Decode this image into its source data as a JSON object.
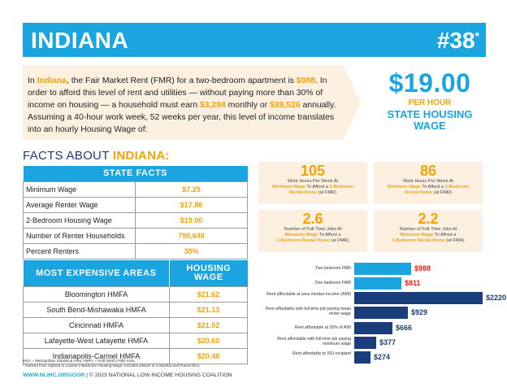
{
  "header": {
    "state": "INDIANA",
    "rank": "#38",
    "rank_mark": "*"
  },
  "intro": {
    "p1": "In ",
    "state": "Indiana",
    "p2": ", the Fair Market Rent (FMR) for a two-bedroom apartment is ",
    "fmr": "$988",
    "p3": ". In order to afford this level of rent and utilities — without paying more than 30% of income on housing — a household must earn ",
    "monthly": "$3,294",
    "p4": " monthly or ",
    "annual": "$39,526",
    "p5": " annually. Assuming a 40-hour work week, 52 weeks per year, this level of income translates into an hourly Housing Wage of:"
  },
  "wage": {
    "amount": "$19.00",
    "per": "PER HOUR",
    "label_line1": "STATE HOUSING",
    "label_line2": "WAGE"
  },
  "facts_title": {
    "prefix": "FACTS ABOUT ",
    "state": "INDIANA:"
  },
  "state_facts": {
    "heading": "STATE FACTS",
    "rows": [
      {
        "label": "Minimum Wage",
        "value": "$7.25"
      },
      {
        "label": "Average Renter Wage",
        "value": "$17.86"
      },
      {
        "label": "2-Bedroom Housing Wage",
        "value": "$19.00"
      },
      {
        "label": "Number of Renter Households",
        "value": "790,648"
      },
      {
        "label": "Percent Renters",
        "value": "30%"
      }
    ]
  },
  "areas": {
    "heading": "MOST EXPENSIVE AREAS",
    "col2_line1": "HOUSING",
    "col2_line2": "WAGE",
    "rows": [
      {
        "name": "Bloomington HMFA",
        "wage": "$21.62"
      },
      {
        "name": "South Bend-Mishawaka HMFA",
        "wage": "$21.13"
      },
      {
        "name": "Cincinnati HMFA",
        "wage": "$21.02"
      },
      {
        "name": "Lafayette-West Lafayette HMFA",
        "wage": "$20.60"
      },
      {
        "name": "Indianapolis-Carmel HMFA",
        "wage": "$20.48"
      }
    ]
  },
  "stats": [
    {
      "num": "105",
      "l1": "Work Hours Per Week At",
      "l2a": "Minimum Wage",
      "l2b": " To Afford a ",
      "l2c": "2-Bedroom",
      "l3a": "Rental Home",
      "l3b": " (at FMR)"
    },
    {
      "num": "86",
      "l1": "Work Hours Per Week At",
      "l2a": "Minimum Wage",
      "l2b": " To Afford a ",
      "l2c": "1-Bedroom",
      "l3a": "Rental Home",
      "l3b": " (at FMR)"
    },
    {
      "num": "2.6",
      "l1": "Number of Full-Time Jobs At",
      "l2a": "Minimum Wage",
      "l2b": " To Afford a",
      "l2c": "",
      "l3a": "2-Bedroom Rental Home",
      "l3b": " (at FMR)"
    },
    {
      "num": "2.2",
      "l1": "Number of Full-Time Jobs At",
      "l2a": "Minimum Wage",
      "l2b": " To Afford a",
      "l2c": "",
      "l3a": "1-Bedroom Rental Home",
      "l3b": " (at FMR)"
    }
  ],
  "chart_data": {
    "type": "bar",
    "orientation": "horizontal",
    "categories": [
      "Two bedroom FMR",
      "One bedroom FMR",
      "Rent affordable at area median income (AMI)",
      "Rent affordable with full-time job paying mean renter wage",
      "Rent affordable at 30% of AMI",
      "Rent affordable with full-time job paying minimum wage",
      "Rent affordable to SSI recipient"
    ],
    "values": [
      988,
      811,
      2220,
      929,
      666,
      377,
      274
    ],
    "value_labels": [
      "$988",
      "$811",
      "$2220",
      "$929",
      "$666",
      "$377",
      "$274"
    ],
    "colors": [
      "#1ba5e0",
      "#1ba5e0",
      "#1a3d7c",
      "#1a3d7c",
      "#1a3d7c",
      "#1a3d7c",
      "#1a3d7c"
    ],
    "label_colors": [
      "#e2231a",
      "#e2231a",
      "#1a3d7c",
      "#1a3d7c",
      "#1a3d7c",
      "#1a3d7c",
      "#1a3d7c"
    ],
    "xlim": [
      0,
      2220
    ]
  },
  "footnote": {
    "line1": "MSA = Metropolitan Statistical Area; HMFA = HUD Metro FMR Area.",
    "line2": "* Ranked from Highest to Lowest 2-Bedroom Housing Wage. Includes District of Columbia and Puerto Rico."
  },
  "footer": {
    "url": "WWW.NLIHC.ORG/OOR",
    "text": " | © 2023 NATIONAL LOW INCOME HOUSING COALITION"
  }
}
